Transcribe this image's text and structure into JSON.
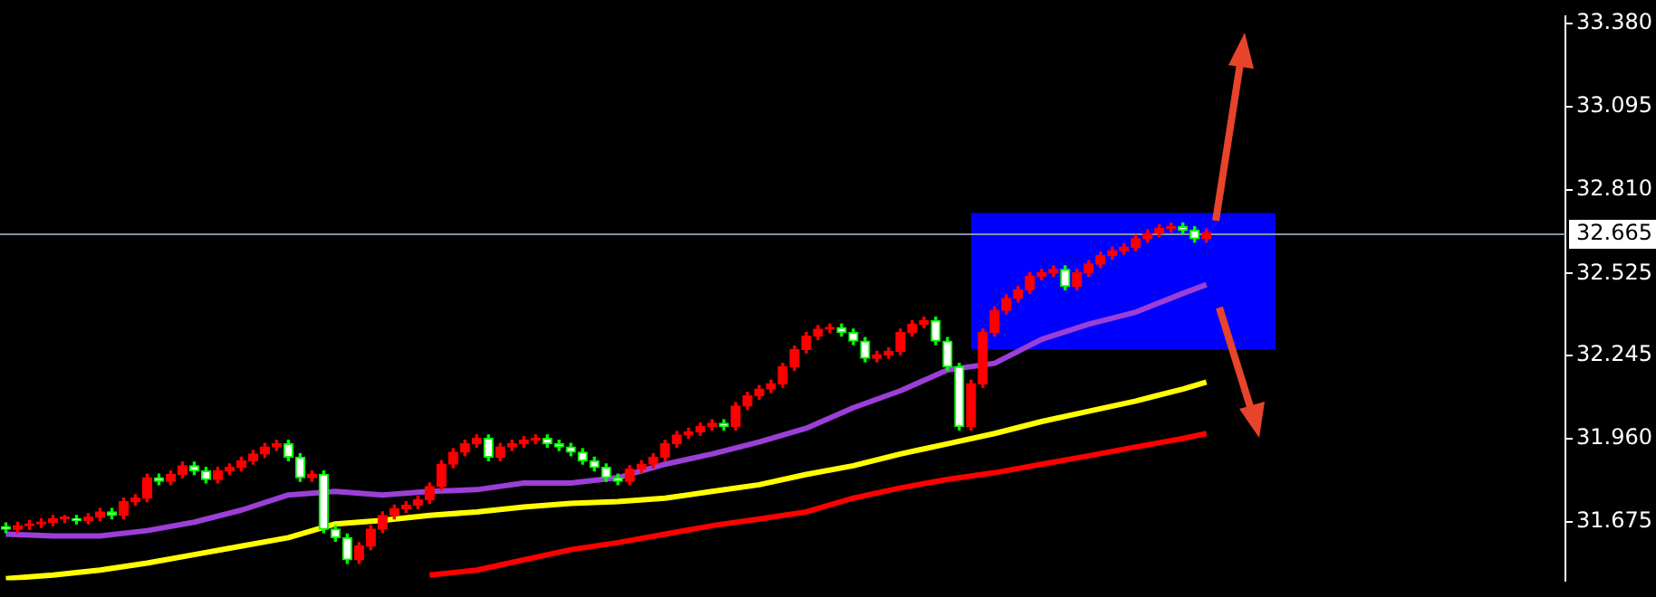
{
  "chart_data": {
    "type": "candlestick",
    "categories": [
      null,
      null,
      null,
      null,
      null,
      null,
      null,
      null,
      null,
      null,
      null,
      null,
      null,
      null,
      null,
      null,
      null,
      null,
      null,
      null,
      null,
      null,
      null,
      null,
      null,
      null,
      null,
      null,
      null,
      null,
      null,
      null,
      null,
      null,
      null,
      null,
      null,
      null,
      null,
      null,
      null,
      null,
      null,
      null,
      null,
      null,
      null,
      null,
      null,
      null,
      null,
      null,
      null,
      null,
      null,
      null,
      null,
      null,
      null,
      null,
      null,
      null,
      null,
      null,
      null,
      null,
      null,
      null,
      null,
      null,
      null,
      null,
      null,
      null,
      null,
      null,
      null,
      null,
      null,
      null,
      null,
      null,
      null,
      null,
      null,
      null,
      null,
      null,
      null,
      null,
      null,
      null,
      null,
      null,
      null,
      null,
      null,
      null,
      null,
      null,
      null,
      null,
      null,
      null,
      null,
      null,
      null,
      null,
      null,
      null,
      null,
      null,
      null,
      null,
      null,
      null,
      null,
      null,
      null,
      null,
      null,
      null,
      null,
      null,
      null,
      null,
      null,
      null,
      null,
      null,
      null,
      null,
      null
    ],
    "ohlc": [
      [
        31.66,
        31.672,
        31.639,
        31.651
      ],
      [
        31.651,
        31.675,
        31.639,
        31.663
      ],
      [
        31.663,
        31.681,
        31.651,
        31.669
      ],
      [
        31.669,
        31.687,
        31.657,
        31.675
      ],
      [
        31.675,
        31.698,
        31.663,
        31.686
      ],
      [
        31.686,
        31.698,
        31.674,
        31.686
      ],
      [
        31.686,
        31.698,
        31.669,
        31.681
      ],
      [
        31.681,
        31.704,
        31.669,
        31.692
      ],
      [
        31.692,
        31.722,
        31.68,
        31.71
      ],
      [
        31.71,
        31.722,
        31.686,
        31.698
      ],
      [
        31.698,
        31.757,
        31.686,
        31.745
      ],
      [
        31.745,
        31.769,
        31.733,
        31.757
      ],
      [
        31.757,
        31.839,
        31.745,
        31.827
      ],
      [
        31.827,
        31.839,
        31.803,
        31.815
      ],
      [
        31.815,
        31.85,
        31.803,
        31.838
      ],
      [
        31.838,
        31.88,
        31.826,
        31.868
      ],
      [
        31.868,
        31.88,
        31.838,
        31.85
      ],
      [
        31.85,
        31.862,
        31.809,
        31.821
      ],
      [
        31.821,
        31.862,
        31.809,
        31.85
      ],
      [
        31.85,
        31.874,
        31.838,
        31.862
      ],
      [
        31.862,
        31.897,
        31.85,
        31.885
      ],
      [
        31.885,
        31.92,
        31.873,
        31.908
      ],
      [
        31.908,
        31.944,
        31.896,
        31.932
      ],
      [
        31.932,
        31.955,
        31.92,
        31.943
      ],
      [
        31.943,
        31.955,
        31.885,
        31.897
      ],
      [
        31.897,
        31.909,
        31.815,
        31.827
      ],
      [
        31.827,
        31.85,
        31.815,
        31.838
      ],
      [
        31.838,
        31.85,
        31.639,
        31.651
      ],
      [
        31.651,
        31.663,
        31.61,
        31.622
      ],
      [
        31.622,
        31.634,
        31.534,
        31.546
      ],
      [
        31.546,
        31.605,
        31.534,
        31.593
      ],
      [
        31.593,
        31.663,
        31.581,
        31.651
      ],
      [
        31.651,
        31.71,
        31.639,
        31.698
      ],
      [
        31.698,
        31.733,
        31.686,
        31.721
      ],
      [
        31.721,
        31.745,
        31.709,
        31.733
      ],
      [
        31.733,
        31.763,
        31.721,
        31.751
      ],
      [
        31.751,
        31.809,
        31.739,
        31.797
      ],
      [
        31.797,
        31.885,
        31.785,
        31.873
      ],
      [
        31.873,
        31.926,
        31.861,
        31.914
      ],
      [
        31.914,
        31.955,
        31.902,
        31.943
      ],
      [
        31.943,
        31.973,
        31.931,
        31.961
      ],
      [
        31.961,
        31.973,
        31.885,
        31.897
      ],
      [
        31.897,
        31.944,
        31.885,
        31.932
      ],
      [
        31.932,
        31.955,
        31.92,
        31.943
      ],
      [
        31.943,
        31.967,
        31.931,
        31.955
      ],
      [
        31.955,
        31.973,
        31.943,
        31.961
      ],
      [
        31.961,
        31.973,
        31.931,
        31.943
      ],
      [
        31.943,
        31.955,
        31.92,
        31.932
      ],
      [
        31.932,
        31.944,
        31.902,
        31.914
      ],
      [
        31.914,
        31.926,
        31.873,
        31.885
      ],
      [
        31.885,
        31.897,
        31.85,
        31.862
      ],
      [
        31.862,
        31.874,
        31.815,
        31.827
      ],
      [
        31.827,
        31.839,
        31.803,
        31.815
      ],
      [
        31.815,
        31.868,
        31.803,
        31.856
      ],
      [
        31.856,
        31.885,
        31.844,
        31.873
      ],
      [
        31.873,
        31.909,
        31.861,
        31.897
      ],
      [
        31.897,
        31.955,
        31.885,
        31.943
      ],
      [
        31.943,
        31.985,
        31.931,
        31.973
      ],
      [
        31.973,
        31.996,
        31.961,
        31.984
      ],
      [
        31.984,
        32.014,
        31.972,
        32.002
      ],
      [
        32.002,
        32.025,
        31.99,
        32.013
      ],
      [
        32.013,
        32.025,
        31.99,
        32.002
      ],
      [
        32.002,
        32.084,
        31.99,
        32.072
      ],
      [
        32.072,
        32.119,
        32.06,
        32.107
      ],
      [
        32.107,
        32.142,
        32.095,
        32.13
      ],
      [
        32.13,
        32.16,
        32.118,
        32.148
      ],
      [
        32.148,
        32.218,
        32.136,
        32.206
      ],
      [
        32.206,
        32.277,
        32.194,
        32.265
      ],
      [
        32.265,
        32.323,
        32.253,
        32.311
      ],
      [
        32.311,
        32.347,
        32.299,
        32.335
      ],
      [
        32.335,
        32.352,
        32.323,
        32.34
      ],
      [
        32.34,
        32.352,
        32.311,
        32.323
      ],
      [
        32.323,
        32.335,
        32.282,
        32.294
      ],
      [
        32.294,
        32.306,
        32.223,
        32.235
      ],
      [
        32.235,
        32.259,
        32.223,
        32.247
      ],
      [
        32.247,
        32.271,
        32.235,
        32.259
      ],
      [
        32.259,
        32.335,
        32.247,
        32.323
      ],
      [
        32.323,
        32.364,
        32.311,
        32.352
      ],
      [
        32.352,
        32.376,
        32.34,
        32.364
      ],
      [
        32.364,
        32.376,
        32.282,
        32.294
      ],
      [
        32.294,
        32.306,
        32.194,
        32.206
      ],
      [
        32.206,
        32.218,
        31.99,
        32.002
      ],
      [
        32.002,
        32.16,
        31.99,
        32.148
      ],
      [
        32.148,
        32.335,
        32.136,
        32.323
      ],
      [
        32.323,
        32.411,
        32.311,
        32.399
      ],
      [
        32.399,
        32.452,
        32.387,
        32.44
      ],
      [
        32.44,
        32.481,
        32.428,
        32.469
      ],
      [
        32.469,
        32.528,
        32.457,
        32.516
      ],
      [
        32.516,
        32.539,
        32.504,
        32.527
      ],
      [
        32.527,
        32.551,
        32.515,
        32.539
      ],
      [
        32.539,
        32.551,
        32.469,
        32.481
      ],
      [
        32.481,
        32.539,
        32.469,
        32.527
      ],
      [
        32.527,
        32.569,
        32.515,
        32.557
      ],
      [
        32.557,
        32.598,
        32.545,
        32.586
      ],
      [
        32.586,
        32.615,
        32.574,
        32.603
      ],
      [
        32.603,
        32.627,
        32.591,
        32.615
      ],
      [
        32.615,
        32.656,
        32.603,
        32.644
      ],
      [
        32.644,
        32.674,
        32.632,
        32.662
      ],
      [
        32.662,
        32.691,
        32.65,
        32.679
      ],
      [
        32.679,
        32.697,
        32.667,
        32.685
      ],
      [
        32.685,
        32.697,
        32.661,
        32.673
      ],
      [
        32.673,
        32.685,
        32.632,
        32.644
      ],
      [
        32.644,
        32.677,
        32.632,
        32.665
      ],
      null,
      null,
      null,
      null,
      null,
      null,
      null,
      null,
      null,
      null,
      null,
      null,
      null,
      null,
      null,
      null,
      null,
      null,
      null,
      null,
      null,
      null,
      null,
      null,
      null,
      null,
      null,
      null,
      null,
      null
    ],
    "series": [
      {
        "type": "line",
        "color": "#9b3fd6",
        "values": [
          31.634,
          null,
          null,
          null,
          31.628,
          null,
          null,
          null,
          31.628,
          null,
          null,
          null,
          31.646,
          null,
          null,
          null,
          31.675,
          null,
          null,
          null,
          31.716,
          null,
          null,
          null,
          31.768,
          null,
          null,
          null,
          31.78,
          null,
          null,
          null,
          31.768,
          null,
          null,
          null,
          31.78,
          null,
          null,
          null,
          31.786,
          null,
          null,
          null,
          31.809,
          null,
          null,
          null,
          31.809,
          null,
          null,
          null,
          31.827,
          null,
          null,
          null,
          31.873,
          null,
          null,
          null,
          31.908,
          null,
          null,
          null,
          31.949,
          null,
          null,
          null,
          31.996,
          null,
          null,
          null,
          32.066,
          null,
          null,
          null,
          32.124,
          null,
          null,
          null,
          32.195,
          null,
          null,
          null,
          32.218,
          null,
          null,
          null,
          32.3,
          null,
          null,
          null,
          32.352,
          null,
          null,
          null,
          32.393,
          null,
          null,
          null,
          32.457,
          null,
          32.487,
          null,
          null,
          null,
          null,
          null,
          null,
          null,
          null,
          null,
          null,
          null,
          null,
          null,
          null,
          null,
          null,
          null,
          null,
          null,
          null,
          null,
          null,
          null,
          null,
          null,
          null,
          null,
          null,
          null,
          null
        ]
      },
      {
        "type": "line",
        "color": "#ffff00",
        "values": [
          31.482,
          null,
          null,
          null,
          31.494,
          null,
          null,
          null,
          31.511,
          null,
          null,
          null,
          31.535,
          null,
          null,
          null,
          31.564,
          null,
          null,
          null,
          31.593,
          null,
          null,
          null,
          31.622,
          null,
          null,
          null,
          31.669,
          null,
          null,
          null,
          31.681,
          null,
          null,
          null,
          31.698,
          null,
          null,
          null,
          31.71,
          null,
          null,
          null,
          31.727,
          null,
          null,
          null,
          31.739,
          null,
          null,
          null,
          31.745,
          null,
          null,
          null,
          31.757,
          null,
          null,
          null,
          31.78,
          null,
          null,
          null,
          31.803,
          null,
          null,
          null,
          31.838,
          null,
          null,
          null,
          31.868,
          null,
          null,
          null,
          31.908,
          null,
          null,
          null,
          31.943,
          null,
          null,
          null,
          31.978,
          null,
          null,
          null,
          32.019,
          null,
          null,
          null,
          32.054,
          null,
          null,
          null,
          32.089,
          null,
          null,
          null,
          32.13,
          null,
          32.154,
          null,
          null,
          null,
          null,
          null,
          null,
          null,
          null,
          null,
          null,
          null,
          null,
          null,
          null,
          null,
          null,
          null,
          null,
          null,
          null,
          null,
          null,
          null,
          null,
          null,
          null,
          null,
          null,
          null,
          null
        ]
      },
      {
        "type": "line",
        "color": "#ff0000",
        "values": [
          null,
          null,
          null,
          null,
          null,
          null,
          null,
          null,
          null,
          null,
          null,
          null,
          null,
          null,
          null,
          null,
          null,
          null,
          null,
          null,
          null,
          null,
          null,
          null,
          null,
          null,
          null,
          null,
          null,
          null,
          null,
          null,
          null,
          null,
          null,
          null,
          31.494,
          null,
          null,
          null,
          31.511,
          null,
          null,
          null,
          31.546,
          null,
          null,
          null,
          31.581,
          null,
          null,
          null,
          31.605,
          null,
          null,
          null,
          31.634,
          null,
          null,
          null,
          31.663,
          null,
          null,
          null,
          31.686,
          null,
          null,
          null,
          31.71,
          null,
          null,
          null,
          31.757,
          null,
          null,
          null,
          31.792,
          null,
          null,
          null,
          31.821,
          null,
          null,
          null,
          31.844,
          null,
          null,
          null,
          31.873,
          null,
          null,
          null,
          31.902,
          null,
          null,
          null,
          31.932,
          null,
          null,
          null,
          31.961,
          null,
          31.978,
          null,
          null,
          null,
          null,
          null,
          null,
          null,
          null,
          null,
          null,
          null,
          null,
          null,
          null,
          null,
          null,
          null,
          null,
          null,
          null,
          null,
          null,
          null,
          null,
          null,
          null,
          null,
          null,
          null,
          null
        ]
      }
    ],
    "ylim": [
      31.476,
      33.403
    ],
    "yticks": [
      31.675,
      {
        "value": 31.96,
        "label": "31.960"
      },
      32.245,
      32.525,
      {
        "value": 32.81,
        "label": "32.810"
      },
      33.095,
      {
        "value": 33.38,
        "label": "33.380"
      }
    ],
    "tick_labels": "y",
    "ref_lines": [
      {
        "axis": "y",
        "value": 32.665,
        "label": "32.665",
        "color": "#8494a8"
      }
    ],
    "bands": [
      {
        "axis": "y",
        "from": 32.265,
        "to": 32.732,
        "color": "#0000ff"
      }
    ]
  }
}
